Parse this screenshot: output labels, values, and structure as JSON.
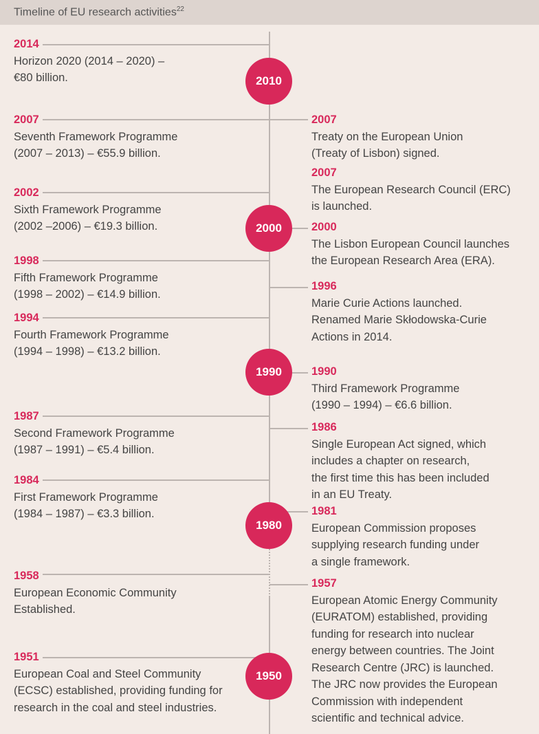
{
  "header": {
    "title": "Timeline of EU research activities",
    "footnote": "22"
  },
  "decades": [
    {
      "label": "2010"
    },
    {
      "label": "2000"
    },
    {
      "label": "1990"
    },
    {
      "label": "1980"
    },
    {
      "label": "1950"
    }
  ],
  "left_events": [
    {
      "year": "2014",
      "text": "Horizon 2020 (2014 – 2020) –\n€80 billion."
    },
    {
      "year": "2007",
      "text": "Seventh Framework Programme\n(2007 – 2013) – €55.9 billion."
    },
    {
      "year": "2002",
      "text": "Sixth Framework Programme\n(2002 –2006) – €19.3 billion."
    },
    {
      "year": "1998",
      "text": "Fifth Framework Programme\n(1998 – 2002) – €14.9 billion."
    },
    {
      "year": "1994",
      "text": "Fourth Framework Programme\n(1994 – 1998) – €13.2 billion."
    },
    {
      "year": "1987",
      "text": "Second Framework Programme\n(1987 – 1991) – €5.4 billion."
    },
    {
      "year": "1984",
      "text": "First Framework Programme\n(1984 – 1987) – €3.3 billion."
    },
    {
      "year": "1958",
      "text": "European Economic Community\nEstablished."
    },
    {
      "year": "1951",
      "text": "European Coal and Steel Community\n(ECSC) established, providing funding for\nresearch in the coal and steel industries."
    }
  ],
  "right_events": [
    {
      "year": "2007",
      "text": "Treaty on the European Union\n(Treaty of Lisbon) signed."
    },
    {
      "year": "2007",
      "text": "The European Research Council (ERC)\nis launched."
    },
    {
      "year": "2000",
      "text": "The Lisbon European Council launches\nthe European Research Area (ERA)."
    },
    {
      "year": "1996",
      "text": "Marie Curie Actions launched.\nRenamed Marie Skłodowska-Curie\nActions in 2014."
    },
    {
      "year": "1990",
      "text": "Third Framework Programme\n(1990 – 1994) – €6.6 billion."
    },
    {
      "year": "1986",
      "text": "Single European Act signed, which\nincludes a chapter on research,\nthe first time this has been included\nin an EU Treaty."
    },
    {
      "year": "1981",
      "text": "European Commission proposes\nsupplying research funding under\na single framework."
    },
    {
      "year": "1957",
      "text": "European Atomic Energy Community\n(EURATOM) established, providing\nfunding for research into nuclear\nenergy between countries. The Joint\nResearch Centre (JRC) is launched.\nThe JRC now provides the European\nCommission with independent\nscientific and technical advice."
    }
  ]
}
